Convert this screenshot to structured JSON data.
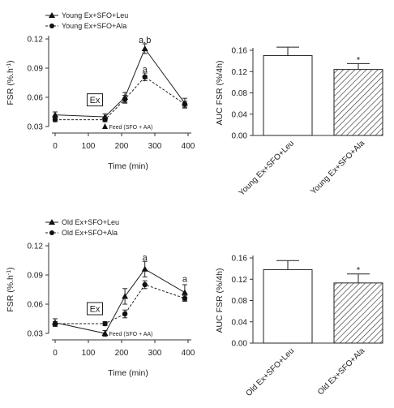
{
  "chart_data": [
    {
      "type": "line",
      "xlabel": "Time (min)",
      "ylabel": "FSR (%.h",
      "ylabel_sup": "-1",
      "ylabel_close": ")",
      "xlim": [
        0,
        400
      ],
      "ylim": [
        0.03,
        0.12
      ],
      "xticks": [
        "0",
        "100",
        "200",
        "300",
        "400"
      ],
      "yticks": [
        "0.03",
        "0.06",
        "0.09",
        "0.12"
      ],
      "series": [
        {
          "name": "Young Ex+SFO+Leu",
          "marker": "triangle",
          "dash": false,
          "x": [
            0,
            150,
            210,
            270,
            390
          ],
          "y": [
            0.042,
            0.04,
            0.06,
            0.11,
            0.054
          ],
          "err": [
            0.003,
            0.003,
            0.005,
            0.005,
            0.005
          ]
        },
        {
          "name": "Young Ex+SFO+Ala",
          "marker": "circle",
          "dash": true,
          "x": [
            0,
            150,
            210,
            270,
            390
          ],
          "y": [
            0.037,
            0.037,
            0.058,
            0.081,
            0.053
          ],
          "err": [
            0.002,
            0.002,
            0.004,
            0.004,
            0.003
          ]
        }
      ],
      "point_labels": [
        {
          "x": 270,
          "y": 0.116,
          "text": "a,b"
        },
        {
          "x": 270,
          "y": 0.086,
          "text": "a"
        }
      ],
      "ex_box": {
        "label": "Ex",
        "x": 150,
        "y": 0.042
      },
      "feed": {
        "x": 150,
        "label": "Feed (SFO + AA)"
      }
    },
    {
      "type": "bar",
      "ylabel": "AUC FSR (%/4h)",
      "ylim": [
        0,
        0.16
      ],
      "yticks": [
        "0.00",
        "0.04",
        "0.08",
        "0.12",
        "0.16"
      ],
      "categories": [
        "Young Ex+SFO+Leu",
        "Young Ex+SFO+Ala"
      ],
      "values": [
        0.15,
        0.124
      ],
      "err": [
        0.016,
        0.011
      ],
      "hatched": [
        false,
        true
      ],
      "labels": [
        "",
        "*"
      ]
    },
    {
      "type": "line",
      "xlabel": "Time (min)",
      "ylabel": "FSR (%.h",
      "ylabel_sup": "-1",
      "ylabel_close": ")",
      "xlim": [
        0,
        400
      ],
      "ylim": [
        0.03,
        0.12
      ],
      "xticks": [
        "0",
        "100",
        "200",
        "300",
        "400"
      ],
      "yticks": [
        "0.03",
        "0.06",
        "0.09",
        "0.12"
      ],
      "series": [
        {
          "name": "Old Ex+SFO+Leu",
          "marker": "triangle",
          "dash": false,
          "x": [
            0,
            150,
            210,
            270,
            390
          ],
          "y": [
            0.041,
            0.03,
            0.068,
            0.096,
            0.072
          ],
          "err": [
            0.004,
            0.003,
            0.008,
            0.008,
            0.008
          ]
        },
        {
          "name": "Old Ex+SFO+Ala",
          "marker": "circle",
          "dash": true,
          "x": [
            0,
            150,
            210,
            270,
            390
          ],
          "y": [
            0.04,
            0.04,
            0.05,
            0.08,
            0.066
          ],
          "err": [
            0.002,
            0.002,
            0.004,
            0.004,
            0.003
          ]
        }
      ],
      "point_labels": [
        {
          "x": 270,
          "y": 0.105,
          "text": "a"
        },
        {
          "x": 390,
          "y": 0.083,
          "text": "a"
        }
      ],
      "ex_box": {
        "label": "Ex",
        "x": 150,
        "y": 0.04
      },
      "feed": {
        "x": 150,
        "label": "Feed (SFO + AA)"
      }
    },
    {
      "type": "bar",
      "ylabel": "AUC FSR (%/4h)",
      "ylim": [
        0,
        0.16
      ],
      "yticks": [
        "0.00",
        "0.04",
        "0.08",
        "0.12",
        "0.16"
      ],
      "categories": [
        "Old Ex+SFO+Leu",
        "Old Ex+SFO+Ala"
      ],
      "values": [
        0.138,
        0.113
      ],
      "err": [
        0.017,
        0.017
      ],
      "hatched": [
        false,
        true
      ],
      "labels": [
        "",
        "*"
      ]
    }
  ]
}
